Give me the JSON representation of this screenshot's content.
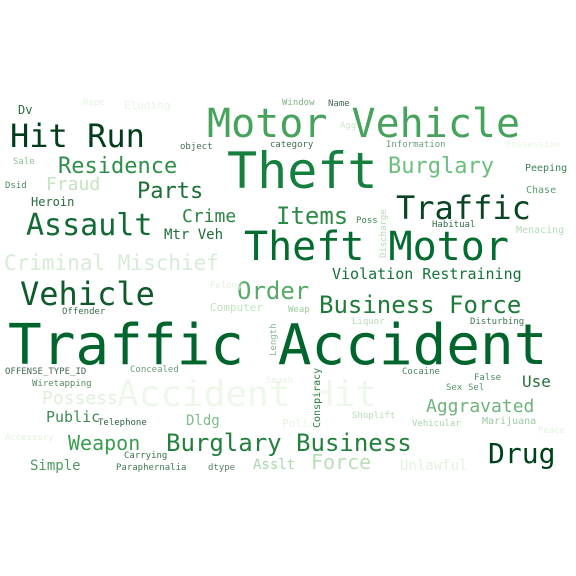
{
  "words": [
    {
      "text": "Traffic Accident",
      "color": "#00652c"
    },
    {
      "text": "Theft",
      "color": "#15803d"
    },
    {
      "text": "Theft Motor",
      "color": "#036d30"
    },
    {
      "text": "Motor Vehicle",
      "color": "#47a35b"
    },
    {
      "text": "Accident Hit",
      "color": "#edf7ea"
    },
    {
      "text": "Hit Run",
      "color": "#003d1a"
    },
    {
      "text": "Traffic",
      "color": "#0a4423"
    },
    {
      "text": "Vehicle",
      "color": "#0e5a2a"
    },
    {
      "text": "Assault",
      "color": "#126b34"
    },
    {
      "text": "Burglary Business",
      "color": "#22803c"
    },
    {
      "text": "Business Force",
      "color": "#1e7a39"
    },
    {
      "text": "Residence",
      "color": "#2f8f4a"
    },
    {
      "text": "Burglary",
      "color": "#6abf7c"
    },
    {
      "text": "Order",
      "color": "#56a968"
    },
    {
      "text": "Items",
      "color": "#2e8b47"
    },
    {
      "text": "Parts",
      "color": "#1b6e35"
    },
    {
      "text": "Drug",
      "color": "#00401c"
    },
    {
      "text": "Weapon",
      "color": "#3b9d52"
    },
    {
      "text": "Criminal Mischief",
      "color": "#d6ecd5"
    },
    {
      "text": "Aggravated",
      "color": "#6eb47c"
    },
    {
      "text": "Force",
      "color": "#b8dfb6"
    },
    {
      "text": "Crime",
      "color": "#2c8544"
    },
    {
      "text": "Fraud",
      "color": "#c3e4c1"
    },
    {
      "text": "Violation Restraining",
      "color": "#15733a"
    },
    {
      "text": "Possess",
      "color": "#dff0dc"
    },
    {
      "text": "Mtr Veh",
      "color": "#1d6f37"
    },
    {
      "text": "Use",
      "color": "#2a6e3e"
    },
    {
      "text": "Public",
      "color": "#3f8a53"
    },
    {
      "text": "Simple",
      "color": "#4e9b60"
    },
    {
      "text": "Dldg",
      "color": "#7cbf87"
    },
    {
      "text": "Asslt",
      "color": "#a6d8a8"
    },
    {
      "text": "Unlawful",
      "color": "#e3f2df"
    },
    {
      "text": "Heroin",
      "color": "#2b6a3c"
    },
    {
      "text": "Eluding",
      "color": "#e7f4e3"
    },
    {
      "text": "Dv",
      "color": "#2d6b3e"
    },
    {
      "text": "Window",
      "color": "#7bb487"
    },
    {
      "text": "Name",
      "color": "#456b52"
    },
    {
      "text": "object",
      "color": "#456b52"
    },
    {
      "text": "category",
      "color": "#3b6e4d"
    },
    {
      "text": "Information",
      "color": "#6f9f7d"
    },
    {
      "text": "Possession",
      "color": "#e6f4e2"
    },
    {
      "text": "Peeping",
      "color": "#3f8054"
    },
    {
      "text": "Chase",
      "color": "#5a9c6b"
    },
    {
      "text": "Menacing",
      "color": "#b5dbb4"
    },
    {
      "text": "Habitual",
      "color": "#2f6d42"
    },
    {
      "text": "Poss",
      "color": "#3c8352"
    },
    {
      "text": "Sale",
      "color": "#8cc391"
    },
    {
      "text": "Dsid",
      "color": "#4d8a5e"
    },
    {
      "text": "Offender",
      "color": "#3c6e4c"
    },
    {
      "text": "OFFENSE_TYPE_ID",
      "color": "#456b52"
    },
    {
      "text": "Wiretapping",
      "color": "#578a65"
    },
    {
      "text": "Concealed",
      "color": "#6d9e7a"
    },
    {
      "text": "Computer",
      "color": "#c0e2bf"
    },
    {
      "text": "Weap",
      "color": "#98cd9c"
    },
    {
      "text": "Liquor",
      "color": "#b4dab4"
    },
    {
      "text": "Disturbing",
      "color": "#3f7852"
    },
    {
      "text": "Cocaine",
      "color": "#4d8460"
    },
    {
      "text": "False",
      "color": "#4d8a5e"
    },
    {
      "text": "Sex",
      "color": "#5a9468"
    },
    {
      "text": "Sel",
      "color": "#5a9468"
    },
    {
      "text": "Telephone",
      "color": "#2f5f3f"
    },
    {
      "text": "Carrying",
      "color": "#3b6d4b"
    },
    {
      "text": "Paraphernalia",
      "color": "#3e7a52"
    },
    {
      "text": "dtype",
      "color": "#5b7f66"
    },
    {
      "text": "Police",
      "color": "#e6f4e2"
    },
    {
      "text": "Shoplift",
      "color": "#b7ddb6"
    },
    {
      "text": "Vehicular",
      "color": "#a9d4aa"
    },
    {
      "text": "Marijuana",
      "color": "#9bc9a0"
    },
    {
      "text": "Peace",
      "color": "#e3f2df"
    },
    {
      "text": "Accessory",
      "color": "#e3f2df"
    },
    {
      "text": "Smash",
      "color": "#e3f2df"
    },
    {
      "text": "Felony",
      "color": "#e3f2df"
    },
    {
      "text": "Agg",
      "color": "#cfe9cd"
    },
    {
      "text": "Rape",
      "color": "#e3f2df"
    },
    {
      "text": "Conspiracy",
      "color": "#2e7d45"
    },
    {
      "text": "Length",
      "color": "#8ab796"
    },
    {
      "text": "Discharge",
      "color": "#b7d9b7"
    }
  ]
}
